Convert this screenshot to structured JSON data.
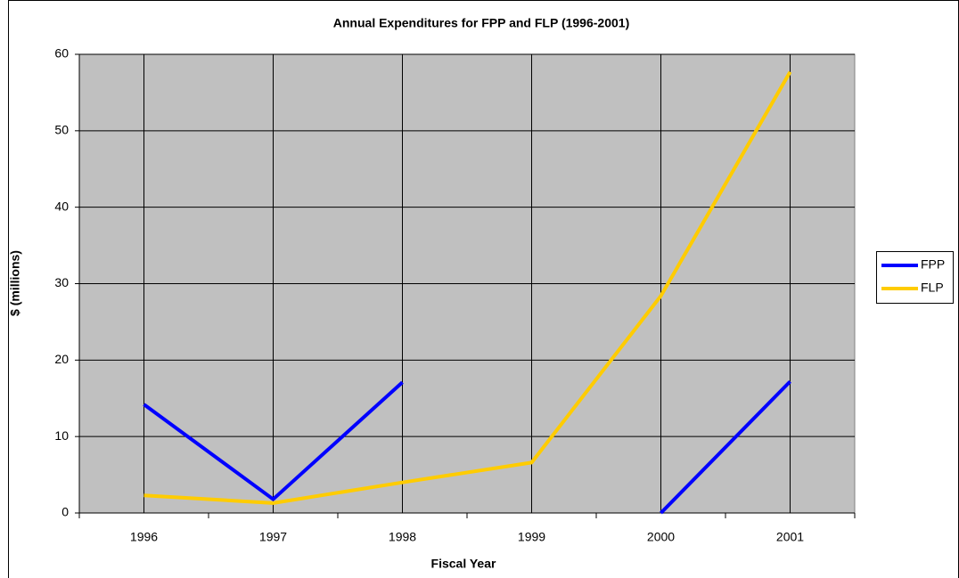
{
  "chart_data": {
    "type": "line",
    "title": "Annual Expenditures for FPP and FLP (1996-2001)",
    "x_label": "Fiscal Year",
    "y_label": "$ (millions)",
    "categories": [
      "1996",
      "1997",
      "1998",
      "1999",
      "2000",
      "2001"
    ],
    "series": [
      {
        "name": "FPP",
        "color": "#0000ff",
        "values": [
          14.2,
          1.8,
          17.1,
          null,
          0,
          17.2
        ]
      },
      {
        "name": "FLP",
        "color": "#ffcc00",
        "values": [
          2.3,
          1.3,
          4.0,
          6.6,
          28.4,
          57.7
        ]
      }
    ],
    "ylim": [
      0,
      60
    ],
    "yticks": [
      0,
      10,
      20,
      30,
      40,
      50,
      60
    ],
    "grid": true,
    "legend": "right"
  }
}
